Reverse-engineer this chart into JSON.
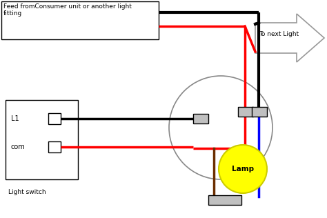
{
  "bg_color": "#ffffff",
  "feed_label": "Feed fromConsumer unit or another light\nfitting",
  "next_light_label": "To next Light",
  "lamp_label": "Lamp",
  "switch_label": "Light switch",
  "l1_label": "L1",
  "com_label": "com",
  "wire_lw": 2.5,
  "conn_color": "#c0c0c0",
  "circle_edge_color": "#888888",
  "lamp_fill": "#ffff00",
  "arrow_edge": "#999999"
}
